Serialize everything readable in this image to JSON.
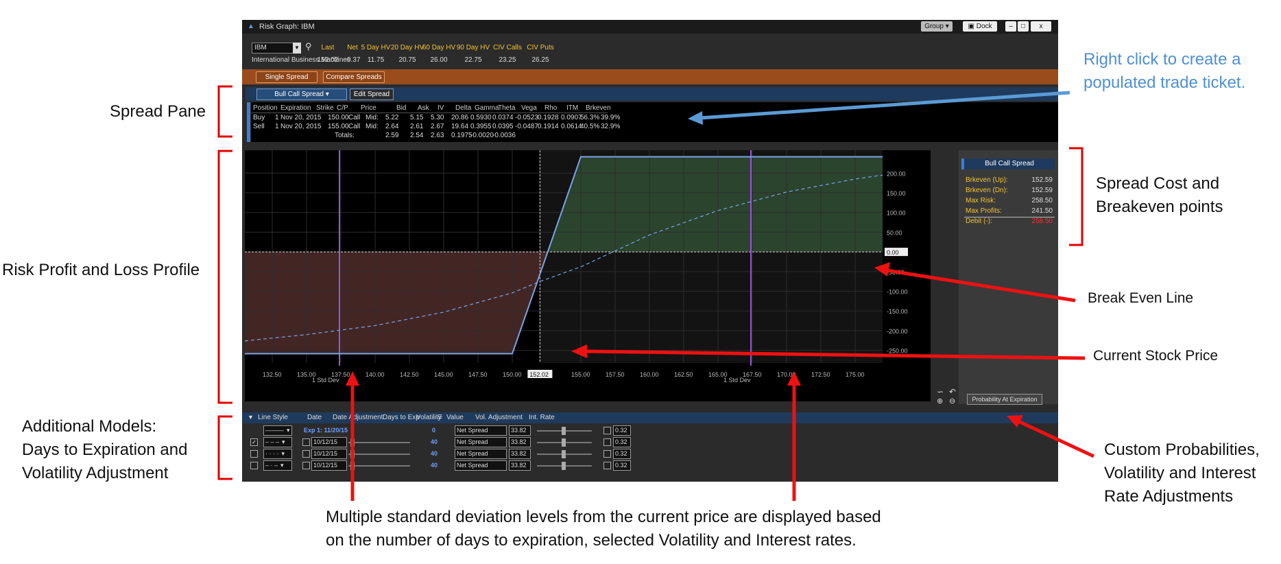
{
  "annotations": {
    "right_click": "Right click to create a populated trade ticket.",
    "spread_pane": "Spread Pane",
    "spread_cost": "Spread Cost and Breakeven points",
    "risk_profile": "Risk Profit and Loss Profile",
    "break_even": "Break Even Line",
    "current_price": "Current Stock Price",
    "models_line1": "Additional Models:",
    "models_line2": "Days to Expiration and",
    "models_line3": "Volatility Adjustment",
    "custom_line1": "Custom Probabilities,",
    "custom_line2": "Volatility and Interest",
    "custom_line3": "Rate Adjustments",
    "bottom_line1": "Multiple standard deviation levels from the current price are displayed based",
    "bottom_line2": "on the number of days to expiration, selected Volatility and Interest rates."
  },
  "window": {
    "title": "Risk Graph: IBM",
    "group_btn": "Group",
    "dock_btn": "Dock",
    "min_btn": "–",
    "max_btn": "□",
    "close_btn": "x"
  },
  "quote": {
    "symbol": "IBM",
    "company": "International Business Machines",
    "headers": [
      "Last",
      "Net",
      "5 Day HV",
      "20 Day HV",
      "60 Day HV",
      "90 Day HV",
      "CIV Calls",
      "CIV Puts"
    ],
    "values": [
      "152.02",
      "-0.37",
      "11.75",
      "20.75",
      "26.00",
      "22.75",
      "23.25",
      "26.25"
    ]
  },
  "tabs": {
    "single": "Single Spread",
    "compare": "Compare Spreads"
  },
  "spread": {
    "type": "Bull Call Spread",
    "edit": "Edit Spread",
    "columns": [
      "Position",
      "Expiration",
      "Strike",
      "C/P",
      "Price",
      "Bid",
      "Ask",
      "IV",
      "Delta",
      "Gamma",
      "Theta",
      "Vega",
      "Rho",
      "ITM",
      "Brkeven"
    ],
    "rows": [
      [
        "Buy",
        "1",
        "Nov 20, 2015",
        "150.00",
        "Call",
        "Mid:",
        "5.22",
        "5.15",
        "5.30",
        "20.86",
        "0.5930",
        "0.0374",
        "-0.0523",
        "0.1928",
        "0.0907",
        "56.3%",
        "39.9%"
      ],
      [
        "Sell",
        "1",
        "Nov 20, 2015",
        "155.00",
        "Call",
        "Mid:",
        "2.64",
        "2.61",
        "2.67",
        "19.64",
        "0.3955",
        "0.0395",
        "-0.0487",
        "0.1914",
        "0.0614",
        "40.5%",
        "32.9%"
      ]
    ],
    "totals": {
      "label": "Totals:",
      "price": "2.59",
      "bid": "2.54",
      "ask": "2.63",
      "delta": "0.1975",
      "gamma": "-0.0020",
      "theta": "-0.0036"
    }
  },
  "summary": {
    "title": "Bull Call Spread",
    "items": [
      {
        "label": "Brkeven (Up):",
        "value": "152.59"
      },
      {
        "label": "Brkeven (Dn):",
        "value": "152.59"
      },
      {
        "label": "Max Risk:",
        "value": "258.50"
      },
      {
        "label": "Max Profits:",
        "value": "241.50"
      },
      {
        "label": "Debit (-):",
        "value": "258.50"
      }
    ],
    "prob_btn": "Probability At Expiration"
  },
  "chart_data": {
    "type": "line",
    "x_ticks": [
      "132.50",
      "135.00",
      "137.50",
      "140.00",
      "142.50",
      "145.00",
      "147.50",
      "150.00",
      "152.02",
      "155.00",
      "157.50",
      "160.00",
      "162.50",
      "165.00",
      "167.50",
      "170.00",
      "172.50",
      "175.00"
    ],
    "y_ticks": [
      "200.00",
      "150.00",
      "100.00",
      "50.00",
      "0.00",
      "-50.00",
      "-100.00",
      "-150.00",
      "-200.00",
      "-250.00"
    ],
    "xlim": [
      130.5,
      177.0
    ],
    "ylim": [
      -282,
      258
    ],
    "current_price": 152.02,
    "std_dev": [
      {
        "x": 137.4,
        "label": "1 Std Dev"
      },
      {
        "x": 167.4,
        "label": "1 Std Dev"
      }
    ],
    "series": [
      {
        "x": [
          130.5,
          150.0,
          155.0,
          177.0
        ],
        "y": [
          -258.5,
          -258.5,
          241.5,
          241.5
        ]
      },
      {
        "x": [
          130.5,
          135.0,
          140.0,
          145.0,
          150.0,
          152.02,
          155.0,
          160.0,
          165.0,
          170.0,
          175.0,
          177.0
        ],
        "y": [
          -226,
          -210,
          -187,
          -153,
          -104,
          -75,
          -38,
          43,
          105,
          152,
          185,
          195
        ]
      }
    ],
    "colors": {
      "profit": "#2f4a32",
      "loss": "#4a2a28",
      "payoff": "#7aa4e8",
      "stddev": "#a050e0"
    }
  },
  "models": {
    "headers": [
      "Line Style",
      "Date",
      "Date Adjustment",
      "Days to Exp",
      "Volatility",
      "Value",
      "Vol. Adjustment",
      "Int. Rate"
    ],
    "rows": [
      {
        "style": "———",
        "date": "Exp 1: 11/20/15",
        "days": "0",
        "vol": "Net Spread",
        "value": "33.82",
        "rate": "0.32",
        "checked": false
      },
      {
        "style": "– – –",
        "date": "10/12/15",
        "days": "40",
        "vol": "Net Spread",
        "value": "33.82",
        "rate": "0.32",
        "checked": true
      },
      {
        "style": "· · · ·",
        "date": "10/12/15",
        "days": "40",
        "vol": "Net Spread",
        "value": "33.82",
        "rate": "0.32",
        "checked": false
      },
      {
        "style": "– · –",
        "date": "10/12/15",
        "days": "40",
        "vol": "Net Spread",
        "value": "33.82",
        "rate": "0.32",
        "checked": false
      }
    ]
  }
}
